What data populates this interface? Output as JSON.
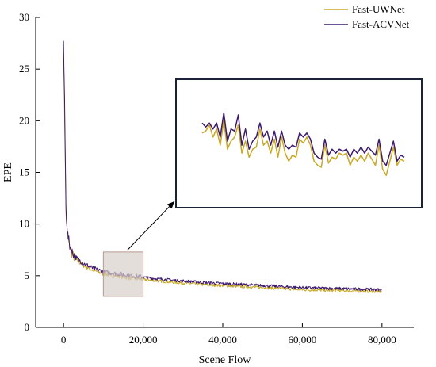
{
  "chart_data": {
    "type": "line",
    "title": "",
    "xlabel": "Scene Flow",
    "ylabel": "EPE",
    "xlim": [
      -7000,
      88000
    ],
    "ylim": [
      0,
      30
    ],
    "x_ticks": [
      0,
      20000,
      40000,
      60000,
      80000
    ],
    "x_tick_labels": [
      "0",
      "20,000",
      "40,000",
      "60,000",
      "80,000"
    ],
    "y_ticks": [
      0,
      5,
      10,
      15,
      20,
      25,
      30
    ],
    "y_tick_labels": [
      "0",
      "5",
      "10",
      "15",
      "20",
      "25",
      "30"
    ],
    "grid": false,
    "legend": "top-right",
    "colors": {
      "Fast-UWNet": "#c8a824",
      "Fast-ACVNet": "#3d1a6e",
      "highlight": "#d9d0cc",
      "frame": "#1a2238"
    },
    "series": [
      {
        "name": "Fast-UWNet",
        "x": [
          0,
          300,
          600,
          1000,
          1500,
          2000,
          3000,
          4000,
          5000,
          6000,
          7000,
          8000,
          10000,
          12000,
          14000,
          16000,
          18000,
          20000,
          25000,
          30000,
          35000,
          40000,
          45000,
          50000,
          55000,
          60000,
          65000,
          70000,
          75000,
          80000
        ],
        "y": [
          26.8,
          19.5,
          11.0,
          8.8,
          7.8,
          7.2,
          6.6,
          6.3,
          6.0,
          5.8,
          5.6,
          5.45,
          5.2,
          5.05,
          4.95,
          4.85,
          4.75,
          4.65,
          4.45,
          4.3,
          4.15,
          4.05,
          3.95,
          3.85,
          3.75,
          3.65,
          3.6,
          3.55,
          3.5,
          3.45
        ]
      },
      {
        "name": "Fast-ACVNet",
        "x": [
          0,
          300,
          600,
          1000,
          1500,
          2000,
          3000,
          4000,
          5000,
          6000,
          7000,
          8000,
          10000,
          12000,
          14000,
          16000,
          18000,
          20000,
          25000,
          30000,
          35000,
          40000,
          45000,
          50000,
          55000,
          60000,
          65000,
          70000,
          75000,
          80000
        ],
        "y": [
          27.8,
          20.5,
          11.5,
          9.1,
          8.0,
          7.4,
          6.8,
          6.5,
          6.2,
          6.0,
          5.8,
          5.65,
          5.4,
          5.25,
          5.15,
          5.05,
          4.95,
          4.85,
          4.65,
          4.5,
          4.35,
          4.25,
          4.15,
          4.05,
          3.95,
          3.85,
          3.8,
          3.75,
          3.7,
          3.65
        ]
      }
    ],
    "highlight_region": {
      "x": [
        10000,
        20000
      ],
      "y": [
        3.0,
        7.3
      ]
    },
    "inset": {
      "series": [
        {
          "name": "Fast-UWNet",
          "values": [
            5.7,
            5.75,
            5.9,
            5.6,
            5.8,
            5.4,
            6.0,
            5.3,
            5.5,
            5.6,
            5.9,
            5.2,
            5.5,
            5.1,
            5.3,
            5.35,
            5.8,
            5.4,
            5.5,
            5.2,
            5.55,
            5.1,
            5.6,
            5.2,
            5.0,
            5.15,
            5.1,
            5.55,
            5.45,
            5.6,
            5.4,
            5.0,
            4.9,
            4.85,
            5.4,
            4.95,
            5.1,
            5.05,
            5.2,
            5.15,
            5.2,
            4.9,
            5.1,
            5.0,
            5.15,
            5.0,
            5.2,
            5.05,
            4.9,
            5.4,
            4.8,
            4.65,
            5.0,
            5.35,
            4.9,
            5.05,
            5.0
          ]
        },
        {
          "name": "Fast-ACVNet",
          "values": [
            5.95,
            5.85,
            5.95,
            5.8,
            5.95,
            5.6,
            6.2,
            5.5,
            5.8,
            5.75,
            6.15,
            5.4,
            5.8,
            5.3,
            5.5,
            5.6,
            5.95,
            5.6,
            5.75,
            5.4,
            5.75,
            5.35,
            5.75,
            5.4,
            5.3,
            5.4,
            5.35,
            5.7,
            5.6,
            5.7,
            5.55,
            5.2,
            5.1,
            5.05,
            5.55,
            5.15,
            5.3,
            5.2,
            5.3,
            5.25,
            5.3,
            5.1,
            5.3,
            5.2,
            5.35,
            5.2,
            5.35,
            5.25,
            5.15,
            5.55,
            5.0,
            4.9,
            5.2,
            5.5,
            5.0,
            5.15,
            5.1
          ]
        }
      ],
      "ylim": [
        4.2,
        6.8
      ]
    }
  }
}
